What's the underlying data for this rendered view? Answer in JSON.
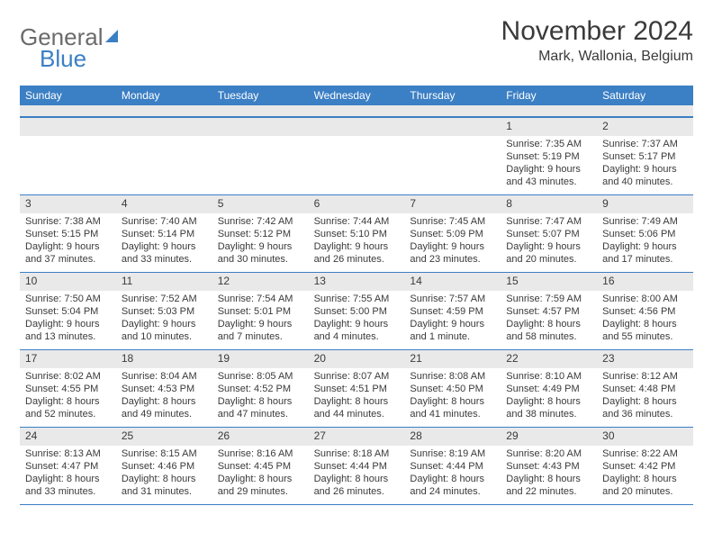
{
  "logo": {
    "word1": "General",
    "word2": "Blue"
  },
  "title": "November 2024",
  "location": "Mark, Wallonia, Belgium",
  "colors": {
    "accent": "#3b7fc4",
    "bar_bg": "#e9e9e9",
    "text": "#3a3a3a",
    "logo_gray": "#6b6b6b",
    "bg": "#ffffff"
  },
  "weekdays": [
    "Sunday",
    "Monday",
    "Tuesday",
    "Wednesday",
    "Thursday",
    "Friday",
    "Saturday"
  ],
  "weeks": [
    [
      null,
      null,
      null,
      null,
      null,
      {
        "day": "1",
        "sunrise": "Sunrise: 7:35 AM",
        "sunset": "Sunset: 5:19 PM",
        "daylight": "Daylight: 9 hours and 43 minutes."
      },
      {
        "day": "2",
        "sunrise": "Sunrise: 7:37 AM",
        "sunset": "Sunset: 5:17 PM",
        "daylight": "Daylight: 9 hours and 40 minutes."
      }
    ],
    [
      {
        "day": "3",
        "sunrise": "Sunrise: 7:38 AM",
        "sunset": "Sunset: 5:15 PM",
        "daylight": "Daylight: 9 hours and 37 minutes."
      },
      {
        "day": "4",
        "sunrise": "Sunrise: 7:40 AM",
        "sunset": "Sunset: 5:14 PM",
        "daylight": "Daylight: 9 hours and 33 minutes."
      },
      {
        "day": "5",
        "sunrise": "Sunrise: 7:42 AM",
        "sunset": "Sunset: 5:12 PM",
        "daylight": "Daylight: 9 hours and 30 minutes."
      },
      {
        "day": "6",
        "sunrise": "Sunrise: 7:44 AM",
        "sunset": "Sunset: 5:10 PM",
        "daylight": "Daylight: 9 hours and 26 minutes."
      },
      {
        "day": "7",
        "sunrise": "Sunrise: 7:45 AM",
        "sunset": "Sunset: 5:09 PM",
        "daylight": "Daylight: 9 hours and 23 minutes."
      },
      {
        "day": "8",
        "sunrise": "Sunrise: 7:47 AM",
        "sunset": "Sunset: 5:07 PM",
        "daylight": "Daylight: 9 hours and 20 minutes."
      },
      {
        "day": "9",
        "sunrise": "Sunrise: 7:49 AM",
        "sunset": "Sunset: 5:06 PM",
        "daylight": "Daylight: 9 hours and 17 minutes."
      }
    ],
    [
      {
        "day": "10",
        "sunrise": "Sunrise: 7:50 AM",
        "sunset": "Sunset: 5:04 PM",
        "daylight": "Daylight: 9 hours and 13 minutes."
      },
      {
        "day": "11",
        "sunrise": "Sunrise: 7:52 AM",
        "sunset": "Sunset: 5:03 PM",
        "daylight": "Daylight: 9 hours and 10 minutes."
      },
      {
        "day": "12",
        "sunrise": "Sunrise: 7:54 AM",
        "sunset": "Sunset: 5:01 PM",
        "daylight": "Daylight: 9 hours and 7 minutes."
      },
      {
        "day": "13",
        "sunrise": "Sunrise: 7:55 AM",
        "sunset": "Sunset: 5:00 PM",
        "daylight": "Daylight: 9 hours and 4 minutes."
      },
      {
        "day": "14",
        "sunrise": "Sunrise: 7:57 AM",
        "sunset": "Sunset: 4:59 PM",
        "daylight": "Daylight: 9 hours and 1 minute."
      },
      {
        "day": "15",
        "sunrise": "Sunrise: 7:59 AM",
        "sunset": "Sunset: 4:57 PM",
        "daylight": "Daylight: 8 hours and 58 minutes."
      },
      {
        "day": "16",
        "sunrise": "Sunrise: 8:00 AM",
        "sunset": "Sunset: 4:56 PM",
        "daylight": "Daylight: 8 hours and 55 minutes."
      }
    ],
    [
      {
        "day": "17",
        "sunrise": "Sunrise: 8:02 AM",
        "sunset": "Sunset: 4:55 PM",
        "daylight": "Daylight: 8 hours and 52 minutes."
      },
      {
        "day": "18",
        "sunrise": "Sunrise: 8:04 AM",
        "sunset": "Sunset: 4:53 PM",
        "daylight": "Daylight: 8 hours and 49 minutes."
      },
      {
        "day": "19",
        "sunrise": "Sunrise: 8:05 AM",
        "sunset": "Sunset: 4:52 PM",
        "daylight": "Daylight: 8 hours and 47 minutes."
      },
      {
        "day": "20",
        "sunrise": "Sunrise: 8:07 AM",
        "sunset": "Sunset: 4:51 PM",
        "daylight": "Daylight: 8 hours and 44 minutes."
      },
      {
        "day": "21",
        "sunrise": "Sunrise: 8:08 AM",
        "sunset": "Sunset: 4:50 PM",
        "daylight": "Daylight: 8 hours and 41 minutes."
      },
      {
        "day": "22",
        "sunrise": "Sunrise: 8:10 AM",
        "sunset": "Sunset: 4:49 PM",
        "daylight": "Daylight: 8 hours and 38 minutes."
      },
      {
        "day": "23",
        "sunrise": "Sunrise: 8:12 AM",
        "sunset": "Sunset: 4:48 PM",
        "daylight": "Daylight: 8 hours and 36 minutes."
      }
    ],
    [
      {
        "day": "24",
        "sunrise": "Sunrise: 8:13 AM",
        "sunset": "Sunset: 4:47 PM",
        "daylight": "Daylight: 8 hours and 33 minutes."
      },
      {
        "day": "25",
        "sunrise": "Sunrise: 8:15 AM",
        "sunset": "Sunset: 4:46 PM",
        "daylight": "Daylight: 8 hours and 31 minutes."
      },
      {
        "day": "26",
        "sunrise": "Sunrise: 8:16 AM",
        "sunset": "Sunset: 4:45 PM",
        "daylight": "Daylight: 8 hours and 29 minutes."
      },
      {
        "day": "27",
        "sunrise": "Sunrise: 8:18 AM",
        "sunset": "Sunset: 4:44 PM",
        "daylight": "Daylight: 8 hours and 26 minutes."
      },
      {
        "day": "28",
        "sunrise": "Sunrise: 8:19 AM",
        "sunset": "Sunset: 4:44 PM",
        "daylight": "Daylight: 8 hours and 24 minutes."
      },
      {
        "day": "29",
        "sunrise": "Sunrise: 8:20 AM",
        "sunset": "Sunset: 4:43 PM",
        "daylight": "Daylight: 8 hours and 22 minutes."
      },
      {
        "day": "30",
        "sunrise": "Sunrise: 8:22 AM",
        "sunset": "Sunset: 4:42 PM",
        "daylight": "Daylight: 8 hours and 20 minutes."
      }
    ]
  ]
}
